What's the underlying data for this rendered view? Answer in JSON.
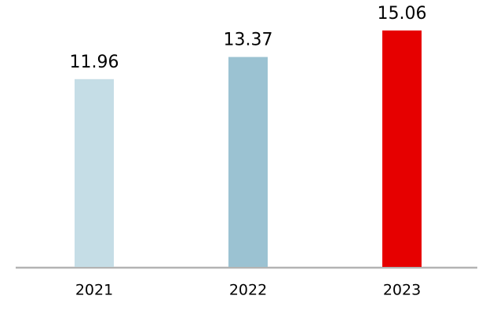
{
  "chart_data": {
    "type": "bar",
    "categories": [
      "2021",
      "2022",
      "2023"
    ],
    "values": [
      11.96,
      13.37,
      15.06
    ],
    "colors": [
      "#c5dde6",
      "#9bc2d2",
      "#e60000"
    ]
  }
}
